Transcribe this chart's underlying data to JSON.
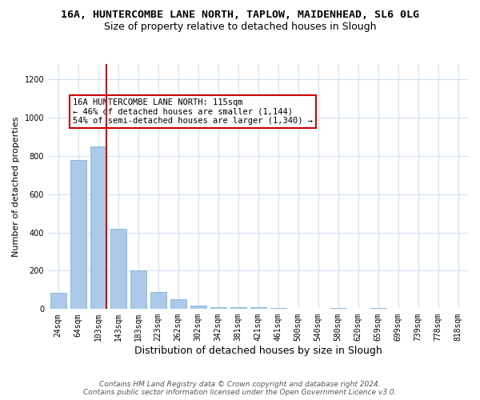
{
  "title1": "16A, HUNTERCOMBE LANE NORTH, TAPLOW, MAIDENHEAD, SL6 0LG",
  "title2": "Size of property relative to detached houses in Slough",
  "xlabel": "Distribution of detached houses by size in Slough",
  "ylabel": "Number of detached properties",
  "categories": [
    "24sqm",
    "64sqm",
    "103sqm",
    "143sqm",
    "183sqm",
    "223sqm",
    "262sqm",
    "302sqm",
    "342sqm",
    "381sqm",
    "421sqm",
    "461sqm",
    "500sqm",
    "540sqm",
    "580sqm",
    "620sqm",
    "659sqm",
    "699sqm",
    "739sqm",
    "778sqm",
    "818sqm"
  ],
  "values": [
    85,
    780,
    850,
    420,
    200,
    90,
    50,
    20,
    10,
    10,
    8,
    5,
    2,
    0,
    5,
    0,
    5,
    2,
    0,
    0,
    0
  ],
  "bar_color": "#adc9e8",
  "bar_edgecolor": "#6aacd5",
  "vline_color": "#cc0000",
  "vline_x_index": 2,
  "annotation_text": "16A HUNTERCOMBE LANE NORTH: 115sqm\n← 46% of detached houses are smaller (1,144)\n54% of semi-detached houses are larger (1,340) →",
  "annotation_box_color": "#ffffff",
  "annotation_box_edgecolor": "#cc0000",
  "ylim": [
    0,
    1280
  ],
  "yticks": [
    0,
    200,
    400,
    600,
    800,
    1000,
    1200
  ],
  "footer1": "Contains HM Land Registry data © Crown copyright and database right 2024.",
  "footer2": "Contains public sector information licensed under the Open Government Licence v3.0.",
  "bg_color": "#ffffff",
  "grid_color": "#ccddee",
  "title1_fontsize": 9.5,
  "title2_fontsize": 9,
  "xlabel_fontsize": 9,
  "ylabel_fontsize": 8,
  "tick_fontsize": 7,
  "annotation_fontsize": 7.5,
  "footer_fontsize": 6.5
}
